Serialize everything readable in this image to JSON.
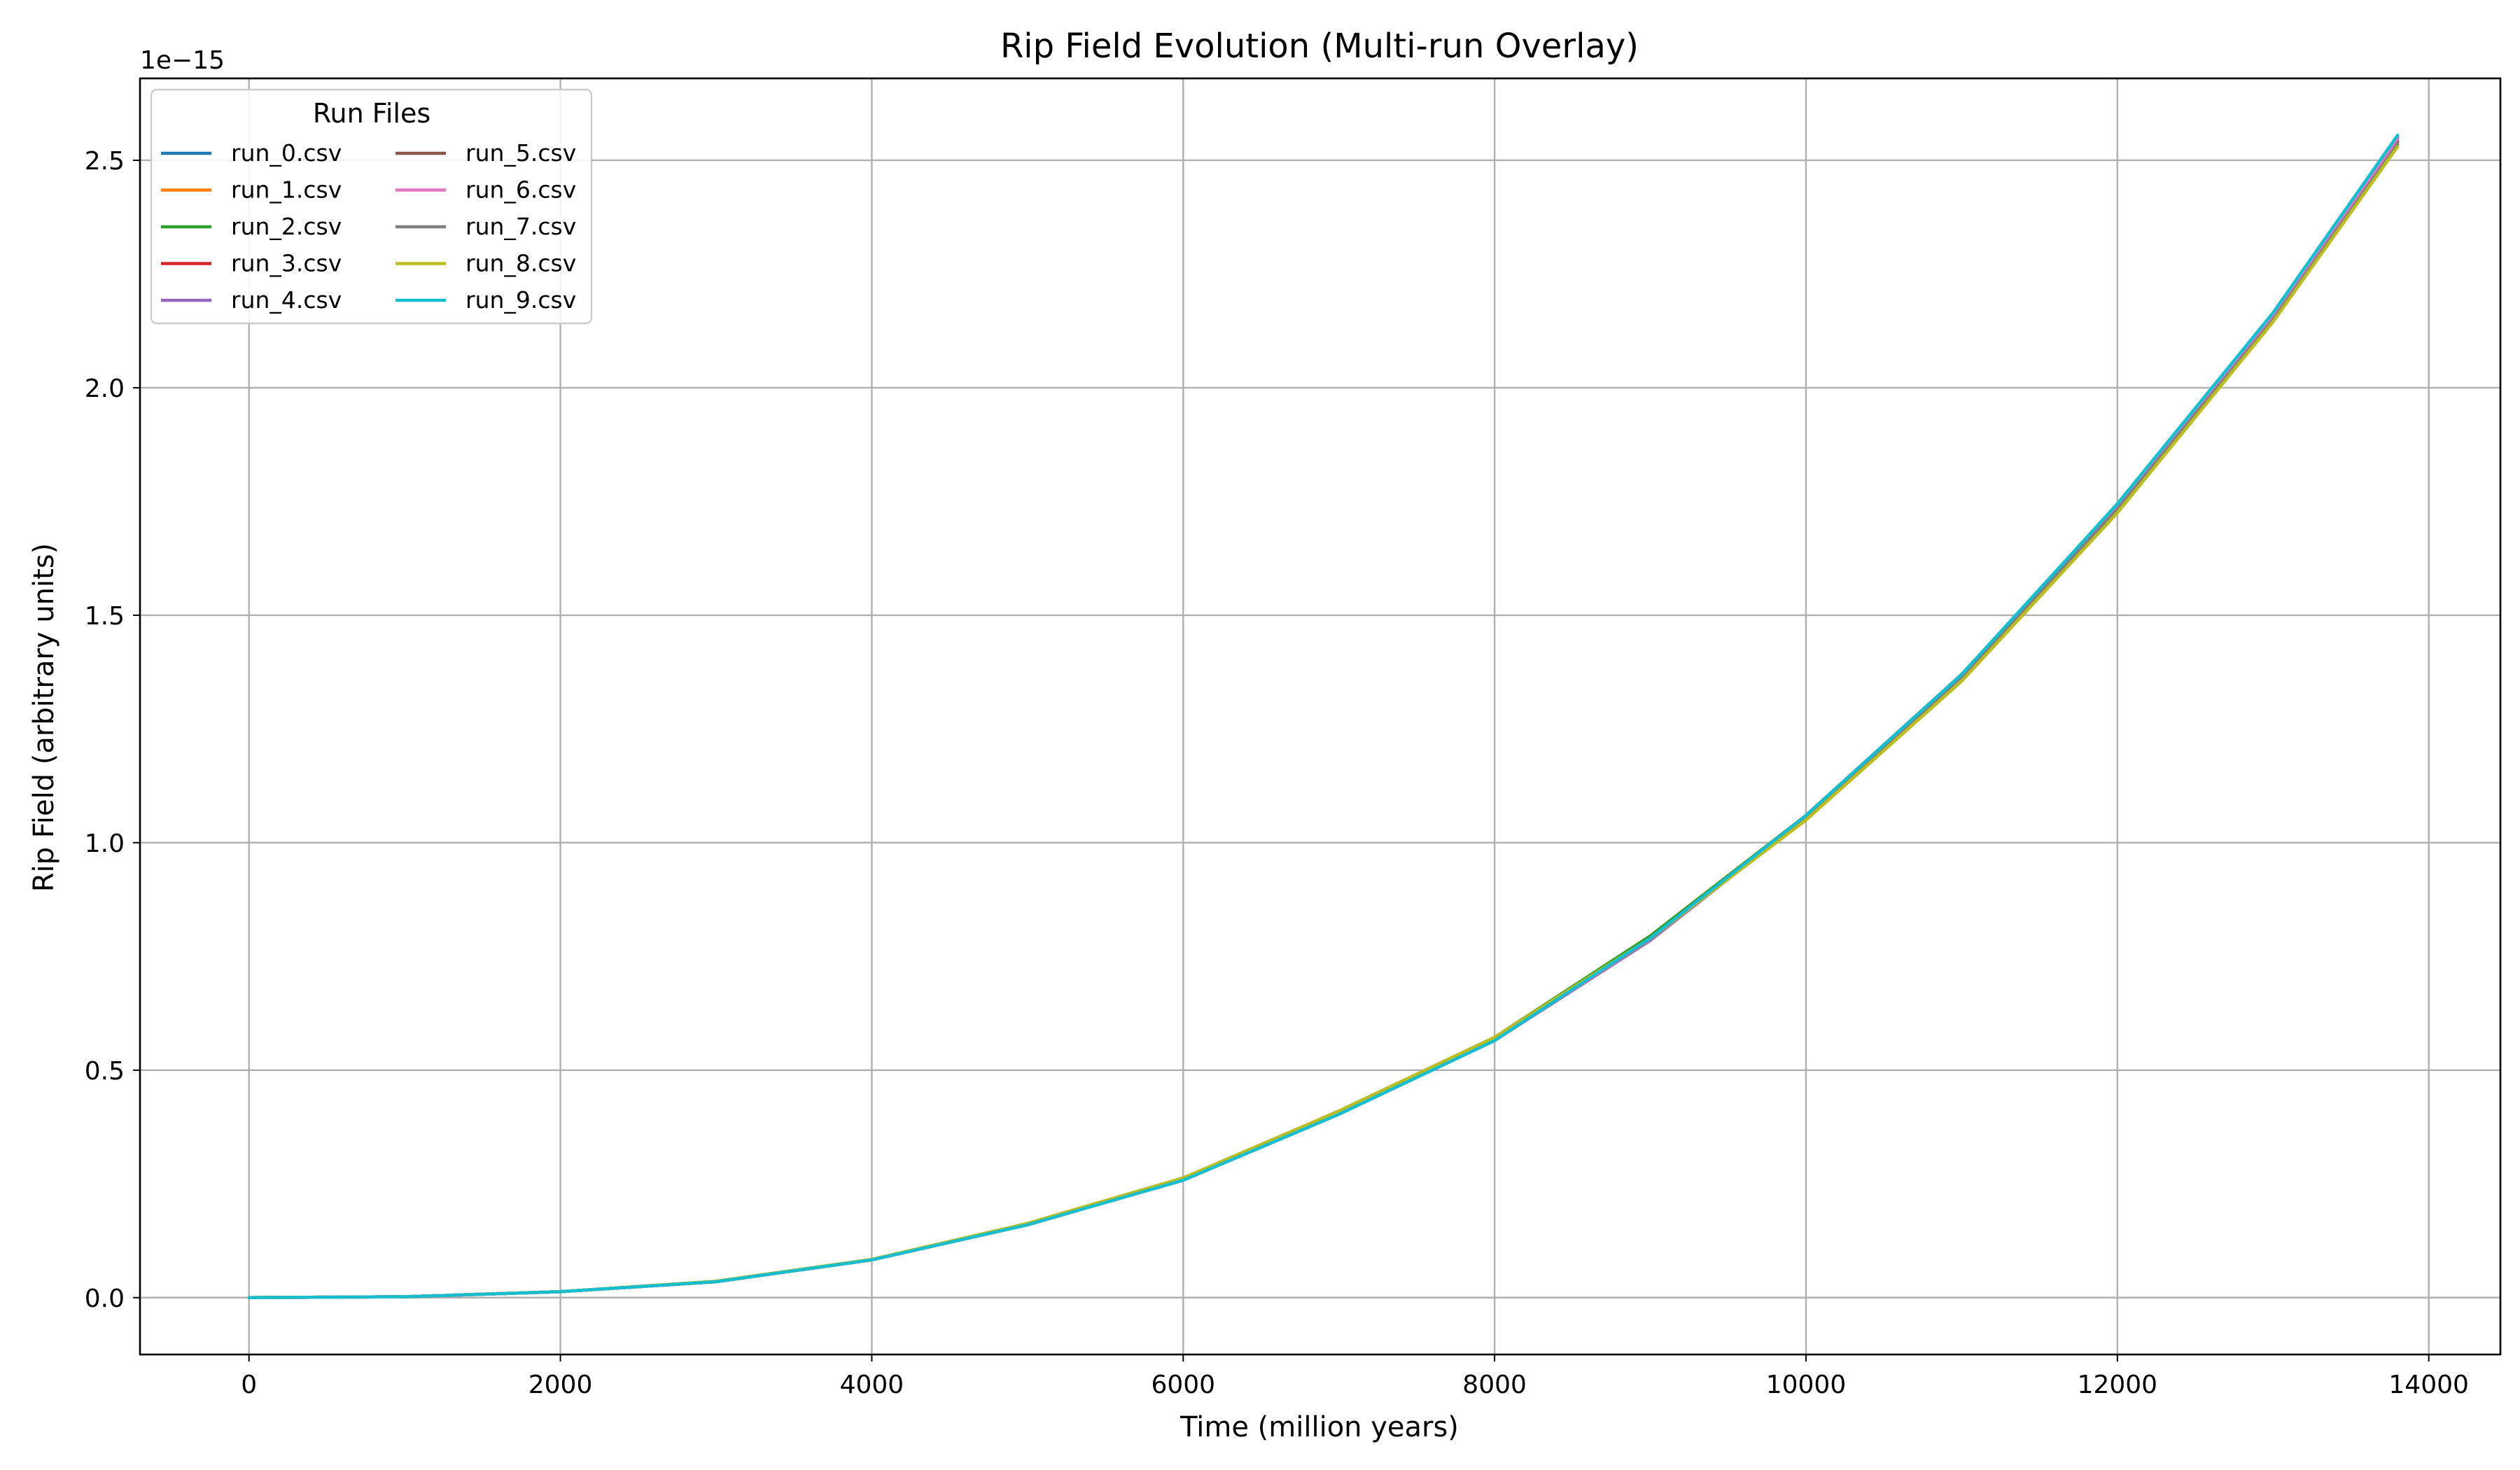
{
  "chart_data": {
    "type": "line",
    "title": "Rip Field Evolution (Multi-run Overlay)",
    "xlabel": "Time (million years)",
    "ylabel": "Rip Field (arbitrary units)",
    "y_offset_label": "1e−15",
    "xlim": [
      -700,
      14460
    ],
    "ylim": [
      -0.125,
      2.68
    ],
    "x_ticks": [
      0,
      2000,
      4000,
      6000,
      8000,
      10000,
      12000,
      14000
    ],
    "x_tick_labels": [
      "0",
      "2000",
      "4000",
      "6000",
      "8000",
      "10000",
      "12000",
      "14000"
    ],
    "y_ticks": [
      0.0,
      0.5,
      1.0,
      1.5,
      2.0,
      2.5
    ],
    "y_tick_labels": [
      "0.0",
      "0.5",
      "1.0",
      "1.5",
      "2.0",
      "2.5"
    ],
    "grid": true,
    "legend": {
      "title": "Run Files",
      "placement": "top-left",
      "columns": 2
    },
    "x": [
      0,
      1000,
      2000,
      3000,
      4000,
      5000,
      6000,
      7000,
      8000,
      9000,
      10000,
      11000,
      12000,
      13000,
      13800
    ],
    "series": [
      {
        "name": "run_0.csv",
        "color": "#1f77b4",
        "values": [
          0.0,
          0.002,
          0.013,
          0.035,
          0.083,
          0.16,
          0.26,
          0.405,
          0.57,
          0.79,
          1.06,
          1.37,
          1.74,
          2.16,
          2.55
        ]
      },
      {
        "name": "run_1.csv",
        "color": "#ff7f0e",
        "values": [
          0.0,
          0.002,
          0.013,
          0.035,
          0.084,
          0.162,
          0.262,
          0.41,
          0.572,
          0.795,
          1.06,
          1.37,
          1.74,
          2.16,
          2.55
        ]
      },
      {
        "name": "run_2.csv",
        "color": "#2ca02c",
        "values": [
          0.0,
          0.002,
          0.013,
          0.036,
          0.084,
          0.163,
          0.263,
          0.41,
          0.572,
          0.795,
          1.06,
          1.37,
          1.74,
          2.16,
          2.545
        ]
      },
      {
        "name": "run_3.csv",
        "color": "#d62728",
        "values": [
          0.0,
          0.002,
          0.013,
          0.035,
          0.083,
          0.161,
          0.26,
          0.406,
          0.57,
          0.79,
          1.06,
          1.37,
          1.74,
          2.16,
          2.55
        ]
      },
      {
        "name": "run_4.csv",
        "color": "#9467bd",
        "values": [
          0.0,
          0.002,
          0.013,
          0.035,
          0.083,
          0.16,
          0.258,
          0.403,
          0.565,
          0.785,
          1.055,
          1.365,
          1.735,
          2.155,
          2.55
        ]
      },
      {
        "name": "run_5.csv",
        "color": "#8c564b",
        "values": [
          0.0,
          0.002,
          0.013,
          0.035,
          0.083,
          0.161,
          0.26,
          0.405,
          0.568,
          0.788,
          1.055,
          1.365,
          1.735,
          2.15,
          2.54
        ]
      },
      {
        "name": "run_6.csv",
        "color": "#e377c2",
        "values": [
          0.0,
          0.002,
          0.013,
          0.035,
          0.083,
          0.16,
          0.259,
          0.404,
          0.567,
          0.787,
          1.056,
          1.366,
          1.736,
          2.156,
          2.548
        ]
      },
      {
        "name": "run_7.csv",
        "color": "#7f7f7f",
        "values": [
          0.0,
          0.002,
          0.013,
          0.035,
          0.083,
          0.161,
          0.26,
          0.405,
          0.568,
          0.788,
          1.055,
          1.365,
          1.733,
          2.15,
          2.535
        ]
      },
      {
        "name": "run_8.csv",
        "color": "#bcbd22",
        "values": [
          0.0,
          0.002,
          0.013,
          0.036,
          0.084,
          0.163,
          0.263,
          0.41,
          0.572,
          0.79,
          1.05,
          1.355,
          1.725,
          2.145,
          2.53
        ]
      },
      {
        "name": "run_9.csv",
        "color": "#17becf",
        "values": [
          0.0,
          0.002,
          0.013,
          0.035,
          0.083,
          0.16,
          0.258,
          0.403,
          0.565,
          0.79,
          1.06,
          1.37,
          1.745,
          2.165,
          2.555
        ]
      }
    ]
  }
}
